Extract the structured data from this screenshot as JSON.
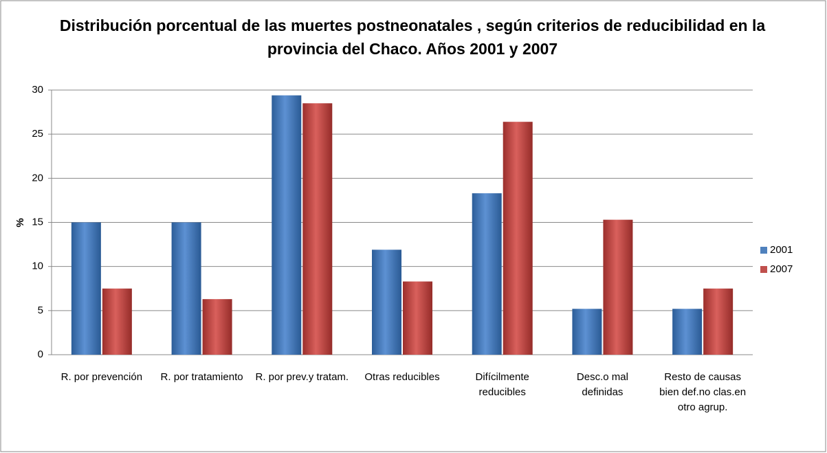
{
  "chart_data": {
    "type": "bar",
    "title": "Distribución porcentual de las muertes postneonatales , según criterios de reducibilidad en la provincia del Chaco. Años 2001 y 2007",
    "y_label": "%",
    "categories": [
      "R. por prevención",
      "R. por tratamiento",
      "R. por prev.y tratam.",
      "Otras reducibles",
      "Difícilmente reducibles",
      "Desc.o mal definidas",
      "Resto de causas bien def.no clas.en otro agrup."
    ],
    "series": [
      {
        "name": "2001",
        "color": "#4f81bd",
        "values": [
          15,
          15,
          29.4,
          11.9,
          18.3,
          5.2,
          5.2
        ]
      },
      {
        "name": "2007",
        "color": "#c0504d",
        "values": [
          7.5,
          6.3,
          28.5,
          8.3,
          26.4,
          15.3,
          7.5
        ]
      }
    ],
    "ylim": [
      0,
      30
    ],
    "yticks": [
      0,
      5,
      10,
      15,
      20,
      25,
      30
    ],
    "grid": true,
    "legend": "right"
  }
}
